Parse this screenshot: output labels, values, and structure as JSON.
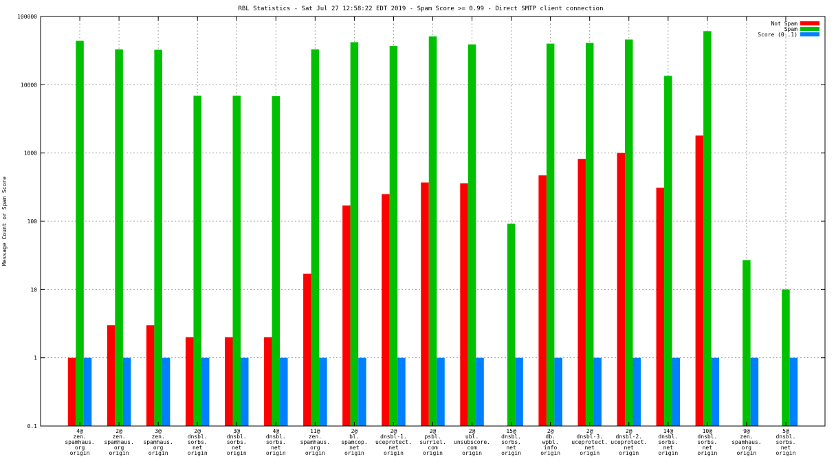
{
  "chart_data": {
    "type": "bar",
    "title": "RBL Statistics - Sat Jul 27 12:58:22 EDT 2019 - Spam Score >= 0.99 - Direct SMTP client connection",
    "xlabel": "",
    "ylabel": "Message Count or Spam Score",
    "yscale": "log",
    "ylim": [
      0.1,
      100000
    ],
    "yticks": [
      "0.1",
      "1",
      "10",
      "100",
      "1000",
      "10000",
      "100000"
    ],
    "grid": true,
    "legend_position": "top-right",
    "categories": [
      [
        "4@",
        "zen.",
        "spamhaus.",
        "org",
        "origin"
      ],
      [
        "2@",
        "zen.",
        "spamhaus.",
        "org",
        "origin"
      ],
      [
        "3@",
        "zen.",
        "spamhaus.",
        "org",
        "origin"
      ],
      [
        "2@",
        "dnsbl.",
        "sorbs.",
        "net",
        "origin"
      ],
      [
        "3@",
        "dnsbl.",
        "sorbs.",
        "net",
        "origin"
      ],
      [
        "4@",
        "dnsbl.",
        "sorbs.",
        "net",
        "origin"
      ],
      [
        "11@",
        "zen.",
        "spamhaus.",
        "org",
        "origin"
      ],
      [
        "2@",
        "bl.",
        "spamcop.",
        "net",
        "origin"
      ],
      [
        "2@",
        "dnsbl-1.",
        "uceprotect.",
        "net",
        "origin"
      ],
      [
        "2@",
        "psbl.",
        "surriel.",
        "com",
        "origin"
      ],
      [
        "2@",
        "ubl.",
        "unsubscore.",
        "com",
        "origin"
      ],
      [
        "15@",
        "dnsbl.",
        "sorbs.",
        "net",
        "origin"
      ],
      [
        "2@",
        "db.",
        "wpbl.",
        "info",
        "origin"
      ],
      [
        "2@",
        "dnsbl-3.",
        "uceprotect.",
        "net",
        "origin"
      ],
      [
        "2@",
        "dnsbl-2.",
        "uceprotect.",
        "net",
        "origin"
      ],
      [
        "14@",
        "dnsbl.",
        "sorbs.",
        "net",
        "origin"
      ],
      [
        "10@",
        "dnsbl.",
        "sorbs.",
        "net",
        "origin"
      ],
      [
        "9@",
        "zen.",
        "spamhaus.",
        "org",
        "origin"
      ],
      [
        "5@",
        "dnsbl.",
        "sorbs.",
        "net",
        "origin"
      ]
    ],
    "series": [
      {
        "name": "Not Spam",
        "color": "#ff0000",
        "values": [
          1,
          3,
          3,
          2,
          2,
          2,
          17,
          170,
          250,
          370,
          360,
          null,
          470,
          820,
          1000,
          310,
          1800,
          null,
          null
        ]
      },
      {
        "name": "Spam",
        "color": "#00c000",
        "values": [
          44000,
          33000,
          32500,
          6900,
          6900,
          6800,
          33000,
          42000,
          37000,
          51000,
          39000,
          92,
          40000,
          41000,
          46000,
          13500,
          61000,
          27,
          10
        ]
      },
      {
        "name": "Score (0..1)",
        "color": "#0080ff",
        "values": [
          1,
          1,
          1,
          1,
          1,
          1,
          1,
          1,
          1,
          1,
          1,
          1,
          1,
          1,
          1,
          1,
          1,
          1,
          1
        ]
      }
    ]
  }
}
